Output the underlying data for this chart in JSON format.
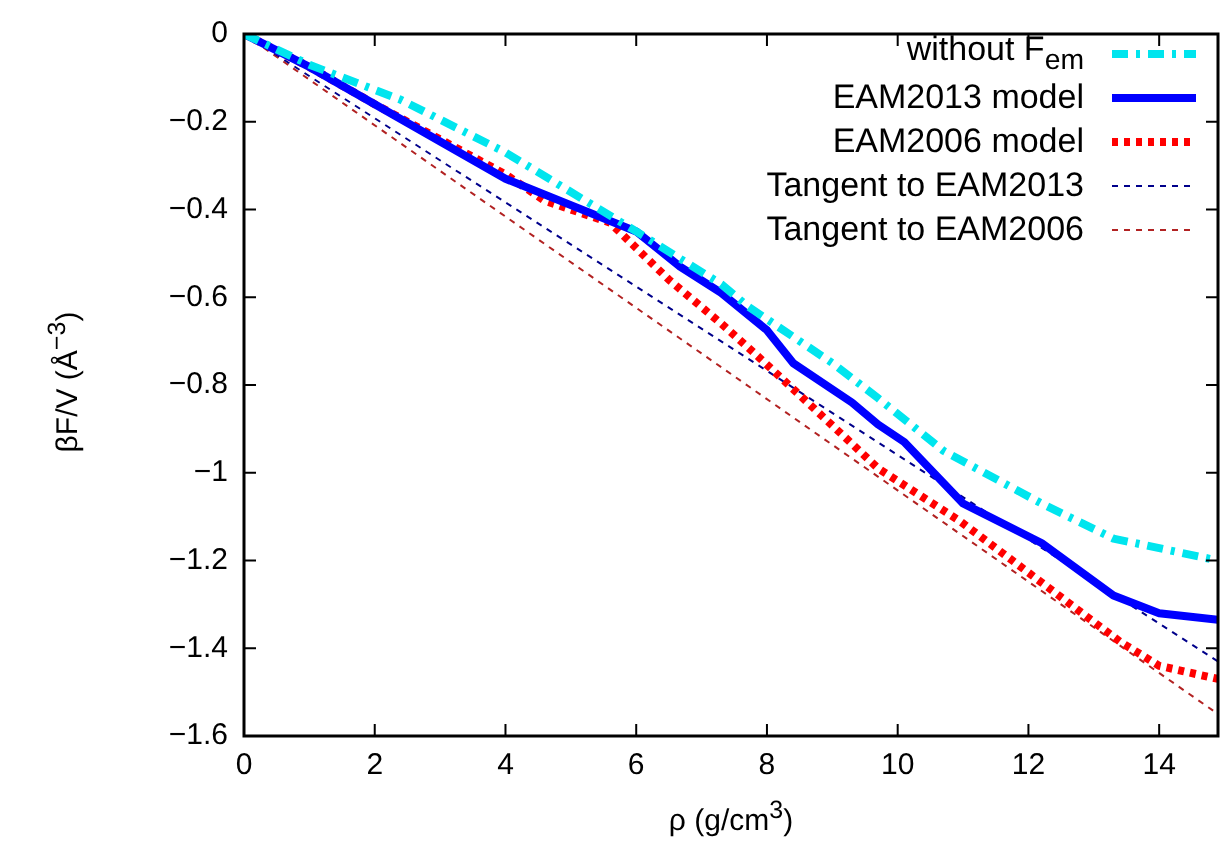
{
  "chart_data": {
    "type": "line",
    "xlabel": "ρ (g/cm$^{3}$)",
    "ylabel": "βF/V (Å$^{−3}$)",
    "xlim": [
      0,
      14.9
    ],
    "xticks": [
      0,
      2,
      4,
      6,
      8,
      10,
      12,
      14
    ],
    "ylim": [
      -1.6,
      0
    ],
    "yticks": [
      {
        "value": -1.6,
        "label": "−1.6"
      },
      {
        "value": -1.4,
        "label": "−1.4"
      },
      {
        "value": -1.2,
        "label": "−1.2"
      },
      {
        "value": -1,
        "label": "−1"
      },
      {
        "value": -0.8,
        "label": "−0.8"
      },
      {
        "value": -0.6,
        "label": "−0.6"
      },
      {
        "value": -0.4,
        "label": "−0.4"
      },
      {
        "value": -0.2,
        "label": "−0.2"
      },
      0
    ],
    "grid": false,
    "legend": "top right",
    "marker": "none",
    "series": [
      {
        "name": "without F$_{em}$",
        "color": "#00e5ee",
        "line_style": "dashed",
        "x": [
          0,
          1,
          2.4,
          4,
          6,
          7.3,
          7.7,
          9,
          9.7,
          10.7,
          12.2,
          13.3,
          14.9
        ],
        "values": [
          0,
          -0.07,
          -0.15,
          -0.27,
          -0.45,
          -0.57,
          -0.62,
          -0.75,
          -0.83,
          -0.95,
          -1.07,
          -1.15,
          -1.2
        ]
      },
      {
        "name": "EAM2013 model",
        "color": "#0000ff",
        "line_style": "solid",
        "x": [
          0,
          1,
          2,
          3,
          4,
          5,
          6,
          6.67,
          7.3,
          8,
          8.4,
          9.3,
          9.7,
          10.1,
          11,
          12.2,
          13.3,
          14,
          14.9
        ],
        "values": [
          0,
          -0.075,
          -0.16,
          -0.245,
          -0.33,
          -0.39,
          -0.45,
          -0.53,
          -0.59,
          -0.675,
          -0.75,
          -0.84,
          -0.89,
          -0.93,
          -1.07,
          -1.16,
          -1.28,
          -1.32,
          -1.335
        ]
      },
      {
        "name": "EAM2006 model",
        "color": "#ff0000",
        "line_style": "dotted",
        "x": [
          0,
          1,
          2,
          3,
          4,
          4.6,
          5.6,
          6.5,
          7.3,
          7.9,
          9.2,
          9.7,
          10.95,
          12.2,
          13.4,
          14,
          14.9
        ],
        "values": [
          0,
          -0.075,
          -0.16,
          -0.24,
          -0.32,
          -0.38,
          -0.43,
          -0.56,
          -0.66,
          -0.74,
          -0.92,
          -0.99,
          -1.11,
          -1.25,
          -1.385,
          -1.44,
          -1.47
        ]
      },
      {
        "name": "Tangent to EAM2013",
        "color": "#00008b",
        "line_style": "dotted",
        "x": [
          0,
          14.9
        ],
        "values": [
          0,
          -1.43
        ]
      },
      {
        "name": "Tangent to EAM2006",
        "color": "#b22222",
        "line_style": "dotted",
        "x": [
          0,
          14.9
        ],
        "values": [
          0,
          -1.55
        ]
      }
    ]
  }
}
